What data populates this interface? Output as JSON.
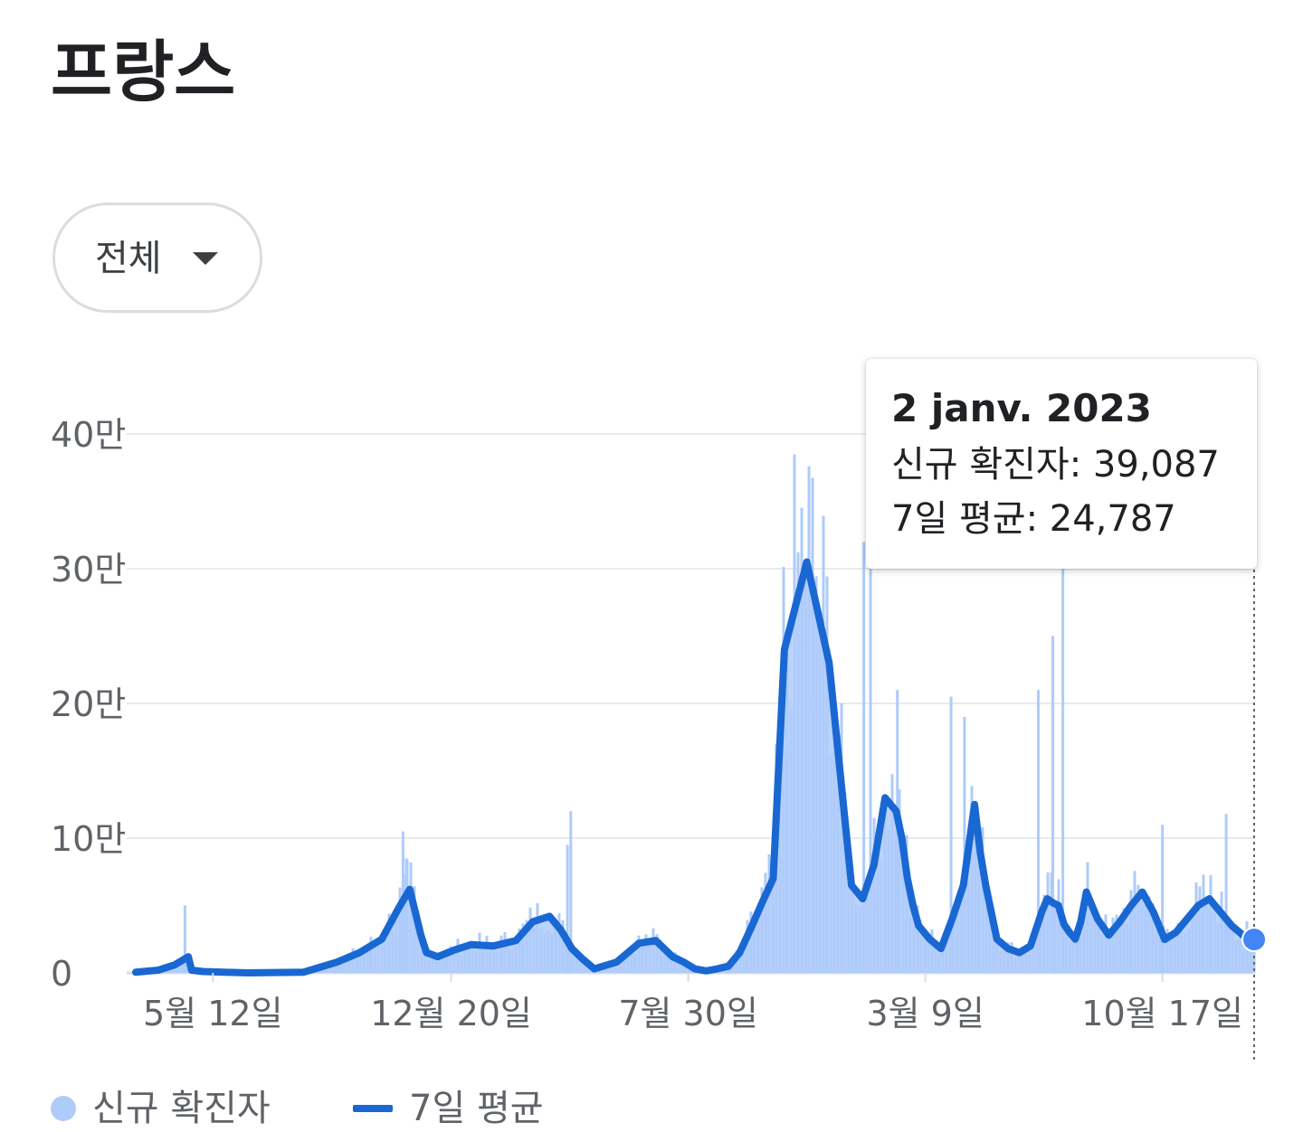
{
  "header": {
    "title": "프랑스"
  },
  "filter": {
    "label": "전체"
  },
  "tooltip": {
    "date": "2 janv. 2023",
    "cases_label": "신규 확진자",
    "cases_value": "39,087",
    "avg_label": "7일 평균",
    "avg_value": "24,787"
  },
  "legend": {
    "cases": "신규 확진자",
    "average": "7일 평균"
  },
  "colors": {
    "bars": "#aecbfa",
    "line": "#1967d2",
    "grid": "#e8eaed",
    "marker": "#4285f4"
  },
  "chart_data": {
    "type": "area",
    "y_tick_labels": [
      "0",
      "10만",
      "20만",
      "30만",
      "40만"
    ],
    "y_tick_values": [
      0,
      100000,
      200000,
      300000,
      400000
    ],
    "ylim": [
      0,
      400000
    ],
    "x_tick_labels": [
      "5월 12일",
      "12월 20일",
      "7월 30일",
      "3월 9일",
      "10월 17일"
    ],
    "x_tick_values": [
      0.069,
      0.282,
      0.494,
      0.706,
      0.918
    ],
    "grid": true,
    "legend_position": "bottom",
    "series": [
      {
        "name": "7일 평균",
        "kind": "line",
        "x": [
          0,
          0.02,
          0.035,
          0.043,
          0.047,
          0.05,
          0.06,
          0.1,
          0.15,
          0.18,
          0.2,
          0.22,
          0.235,
          0.245,
          0.25,
          0.255,
          0.26,
          0.27,
          0.285,
          0.3,
          0.32,
          0.34,
          0.355,
          0.37,
          0.38,
          0.39,
          0.4,
          0.41,
          0.43,
          0.45,
          0.465,
          0.48,
          0.49,
          0.5,
          0.51,
          0.52,
          0.53,
          0.54,
          0.55,
          0.56,
          0.57,
          0.58,
          0.6,
          0.62,
          0.64,
          0.65,
          0.66,
          0.67,
          0.68,
          0.685,
          0.69,
          0.695,
          0.7,
          0.71,
          0.72,
          0.73,
          0.74,
          0.75,
          0.755,
          0.76,
          0.77,
          0.78,
          0.79,
          0.8,
          0.81,
          0.815,
          0.82,
          0.825,
          0.83,
          0.835,
          0.84,
          0.845,
          0.85,
          0.86,
          0.87,
          0.88,
          0.89,
          0.9,
          0.91,
          0.92,
          0.93,
          0.94,
          0.95,
          0.96,
          0.97,
          0.98,
          0.99,
          1.0
        ],
        "y": [
          500,
          2000,
          6000,
          10000,
          12000,
          2000,
          1000,
          0,
          500,
          8000,
          15000,
          25000,
          48000,
          62000,
          45000,
          28000,
          15000,
          12000,
          17000,
          21000,
          20000,
          24000,
          38000,
          42000,
          32000,
          18000,
          10000,
          3000,
          8000,
          22000,
          24000,
          12000,
          8000,
          3000,
          1500,
          3000,
          5000,
          15000,
          33000,
          52000,
          70000,
          240000,
          305000,
          230000,
          65000,
          55000,
          80000,
          130000,
          120000,
          100000,
          70000,
          50000,
          35000,
          25000,
          18000,
          40000,
          65000,
          125000,
          90000,
          65000,
          25000,
          18000,
          15000,
          20000,
          45000,
          55000,
          52000,
          50000,
          36000,
          30000,
          25000,
          38000,
          60000,
          40000,
          28000,
          38000,
          50000,
          60000,
          45000,
          24787,
          30000,
          40000,
          50000,
          55000,
          45000,
          35000,
          28000,
          24787
        ]
      },
      {
        "name": "신규 확진자",
        "kind": "bar",
        "peaks": [
          {
            "x": 0.044,
            "y": 50000
          },
          {
            "x": 0.239,
            "y": 105000
          },
          {
            "x": 0.242,
            "y": 85000
          },
          {
            "x": 0.389,
            "y": 120000
          },
          {
            "x": 0.386,
            "y": 95000
          },
          {
            "x": 0.651,
            "y": 320000
          },
          {
            "x": 0.657,
            "y": 350000
          },
          {
            "x": 0.681,
            "y": 210000
          },
          {
            "x": 0.729,
            "y": 205000
          },
          {
            "x": 0.741,
            "y": 190000
          },
          {
            "x": 0.807,
            "y": 210000
          },
          {
            "x": 0.82,
            "y": 250000
          },
          {
            "x": 0.829,
            "y": 300000
          },
          {
            "x": 0.918,
            "y": 110000
          },
          {
            "x": 0.975,
            "y": 118000
          }
        ]
      }
    ],
    "highlight": {
      "x": 1.0,
      "y": 24787,
      "date": "2 janv. 2023"
    }
  }
}
